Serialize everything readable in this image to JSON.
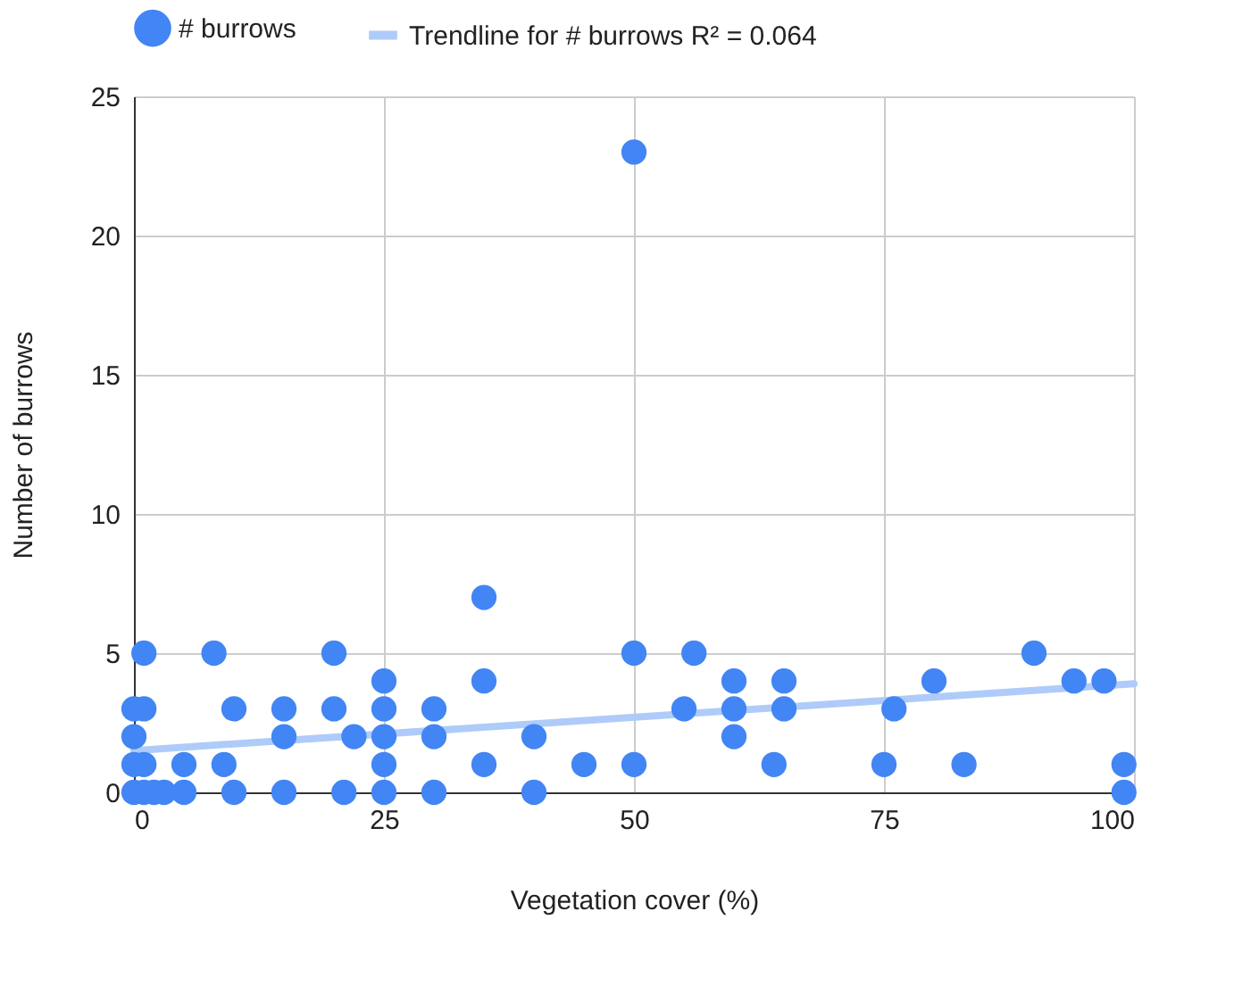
{
  "chart_data": {
    "type": "scatter",
    "xlabel": "Vegetation cover (%)",
    "ylabel": "Number of burrows",
    "xlim": [
      0,
      100
    ],
    "ylim": [
      0,
      25
    ],
    "xticks": [
      0,
      25,
      50,
      75,
      100
    ],
    "yticks": [
      0,
      5,
      10,
      15,
      20,
      25
    ],
    "grid": true,
    "legend": "top",
    "marker": "circle",
    "series": [
      {
        "name": "# burrows",
        "color": "#4285f4",
        "x": [
          0,
          0,
          0,
          0,
          1,
          1,
          1,
          1,
          2,
          3,
          5,
          5,
          8,
          9,
          10,
          10,
          15,
          15,
          15,
          20,
          20,
          21,
          22,
          25,
          25,
          25,
          25,
          25,
          30,
          30,
          30,
          35,
          35,
          35,
          40,
          40,
          45,
          50,
          50,
          50,
          55,
          56,
          60,
          60,
          60,
          64,
          65,
          65,
          75,
          76,
          80,
          83,
          90,
          94,
          97,
          99,
          99
        ],
        "values": [
          0,
          1,
          2,
          3,
          5,
          3,
          1,
          0,
          0,
          0,
          1,
          0,
          5,
          1,
          3,
          0,
          3,
          2,
          0,
          5,
          3,
          0,
          2,
          4,
          3,
          2,
          1,
          0,
          3,
          2,
          0,
          7,
          4,
          1,
          2,
          0,
          1,
          23,
          5,
          1,
          3,
          5,
          4,
          3,
          2,
          1,
          4,
          3,
          1,
          3,
          4,
          1,
          5,
          4,
          4,
          1,
          0
        ]
      },
      {
        "name": "Trendline for # burrows R² = 0.064",
        "type": "line",
        "marker": "none",
        "line_style": "solid",
        "color": "#aecbfa",
        "x": [
          0,
          100
        ],
        "values": [
          1.5,
          3.9
        ]
      }
    ]
  }
}
